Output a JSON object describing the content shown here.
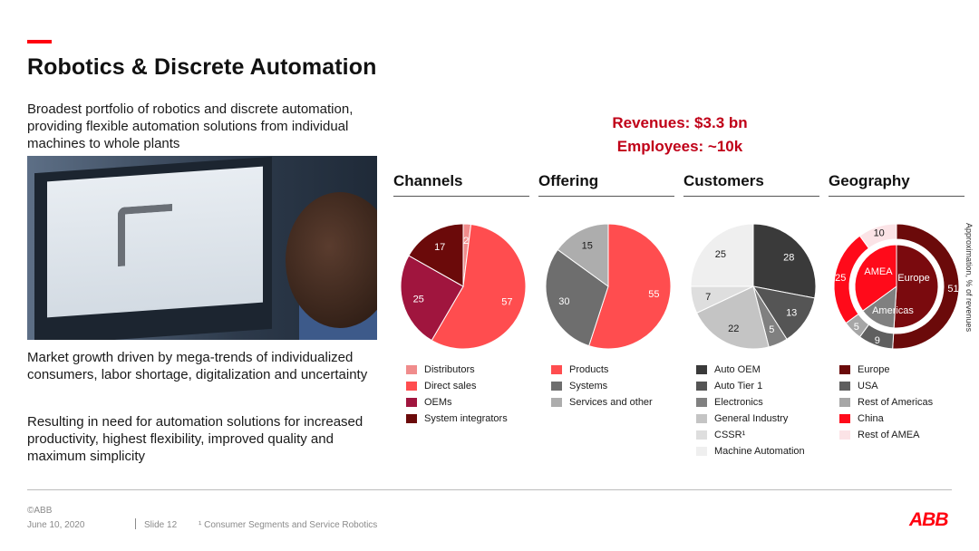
{
  "title": "Robotics & Discrete Automation",
  "intro": "Broadest portfolio of robotics and discrete automation, providing flexible automation solutions from individual machines to whole plants",
  "growth_text": "Market growth driven by mega-trends of individualized consumers, labor shortage, digitalization and uncertainty",
  "result_text": "Resulting in need for automation solutions for increased productivity, highest flexibility, improved quality and maximum simplicity",
  "kpis": {
    "revenues": "Revenues: $3.3 bn",
    "employees": "Employees: ~10k"
  },
  "side_note": "Approximation, % of revenues",
  "footer": {
    "copyright": "©ABB",
    "date": "June 10, 2020",
    "slide": "Slide 12",
    "note": "¹ Consumer Segments and Service Robotics",
    "logo": "ABB"
  },
  "chart_data": [
    {
      "type": "pie",
      "title": "Channels",
      "slices": [
        {
          "label": "Distributors",
          "value": 2,
          "color": "#f08c8c"
        },
        {
          "label": "Direct sales",
          "value": 57,
          "color": "#ff4d4f"
        },
        {
          "label": "OEMs",
          "value": 25,
          "color": "#a0153e"
        },
        {
          "label": "System integrators",
          "value": 17,
          "color": "#6b0a0a"
        }
      ]
    },
    {
      "type": "pie",
      "title": "Offering",
      "slices": [
        {
          "label": "Products",
          "value": 55,
          "color": "#ff4d4f"
        },
        {
          "label": "Systems",
          "value": 30,
          "color": "#6e6e6e"
        },
        {
          "label": "Services and other",
          "value": 15,
          "color": "#adadad"
        }
      ]
    },
    {
      "type": "pie",
      "title": "Customers",
      "slices": [
        {
          "label": "Auto OEM",
          "value": 28,
          "color": "#3a3a3a"
        },
        {
          "label": "Auto Tier 1",
          "value": 13,
          "color": "#555555"
        },
        {
          "label": "Electronics",
          "value": 5,
          "color": "#808080"
        },
        {
          "label": "General Industry",
          "value": 22,
          "color": "#c4c4c4"
        },
        {
          "label": "CSSR¹",
          "value": 7,
          "color": "#dedede"
        },
        {
          "label": "Machine Automation",
          "value": 25,
          "color": "#efefef"
        }
      ]
    },
    {
      "type": "pie",
      "title": "Geography",
      "slices": [
        {
          "label": "Europe",
          "value": 51,
          "color": "#6b0a0a"
        },
        {
          "label": "USA",
          "value": 9,
          "color": "#5f5f5f"
        },
        {
          "label": "Rest of Americas",
          "value": 5,
          "color": "#a6a6a6"
        },
        {
          "label": "China",
          "value": 25,
          "color": "#ff0a1a"
        },
        {
          "label": "Rest of AMEA",
          "value": 10,
          "color": "#fbe3e6"
        }
      ],
      "inner_labels": [
        "Europe",
        "Americas",
        "AMEA"
      ]
    }
  ]
}
